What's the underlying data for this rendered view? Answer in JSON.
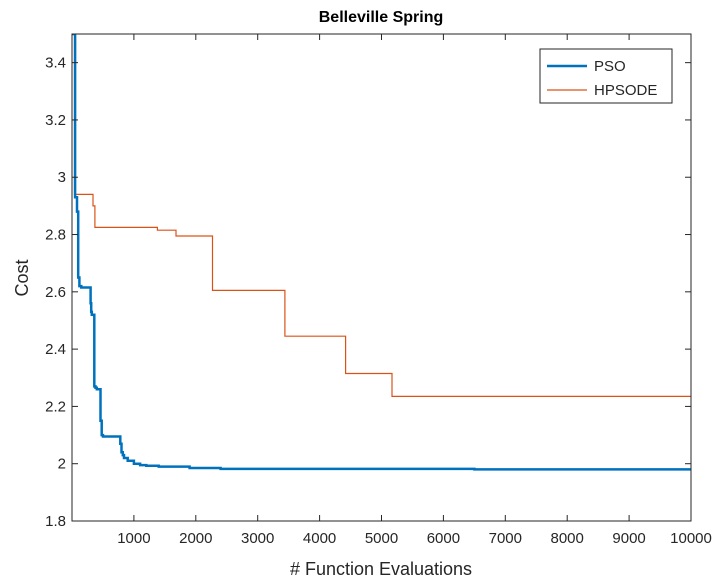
{
  "chart_data": {
    "type": "line",
    "title": "Belleville Spring",
    "xlabel": "# Function Evaluations",
    "ylabel": "Cost",
    "xlim": [
      0,
      10000
    ],
    "ylim": [
      1.8,
      3.5
    ],
    "xticks": [
      1000,
      2000,
      3000,
      4000,
      5000,
      6000,
      7000,
      8000,
      9000,
      10000
    ],
    "xtick_labels": [
      "1000",
      "2000",
      "3000",
      "4000",
      "5000",
      "6000",
      "7000",
      "8000",
      "9000",
      "10000"
    ],
    "yticks": [
      1.8,
      2.0,
      2.2,
      2.4,
      2.6,
      2.8,
      3.0,
      3.2,
      3.4
    ],
    "ytick_labels": [
      "1.8",
      "2",
      "2.2",
      "2.4",
      "2.6",
      "2.8",
      "3",
      "3.2",
      "3.4"
    ],
    "grid": false,
    "legend_position": "top-right",
    "series": [
      {
        "name": "PSO",
        "color": "#0072BD",
        "step": true,
        "x": [
          0,
          50,
          80,
          100,
          120,
          150,
          300,
          310,
          320,
          360,
          380,
          400,
          460,
          480,
          500,
          780,
          800,
          820,
          840,
          900,
          1000,
          1100,
          1200,
          1400,
          1900,
          2400,
          6500,
          10000
        ],
        "y": [
          3.5,
          2.93,
          2.88,
          2.65,
          2.62,
          2.615,
          2.56,
          2.53,
          2.52,
          2.27,
          2.265,
          2.26,
          2.15,
          2.1,
          2.095,
          2.07,
          2.04,
          2.03,
          2.02,
          2.01,
          2.0,
          1.995,
          1.993,
          1.99,
          1.985,
          1.982,
          1.98,
          1.98
        ]
      },
      {
        "name": "HPSODE",
        "color": "#D95319",
        "step": true,
        "x": [
          0,
          40,
          340,
          370,
          1380,
          1680,
          2270,
          3440,
          4420,
          5170,
          10000
        ],
        "y": [
          3.5,
          2.94,
          2.9,
          2.825,
          2.815,
          2.795,
          2.605,
          2.445,
          2.315,
          2.235,
          2.235
        ]
      }
    ]
  }
}
